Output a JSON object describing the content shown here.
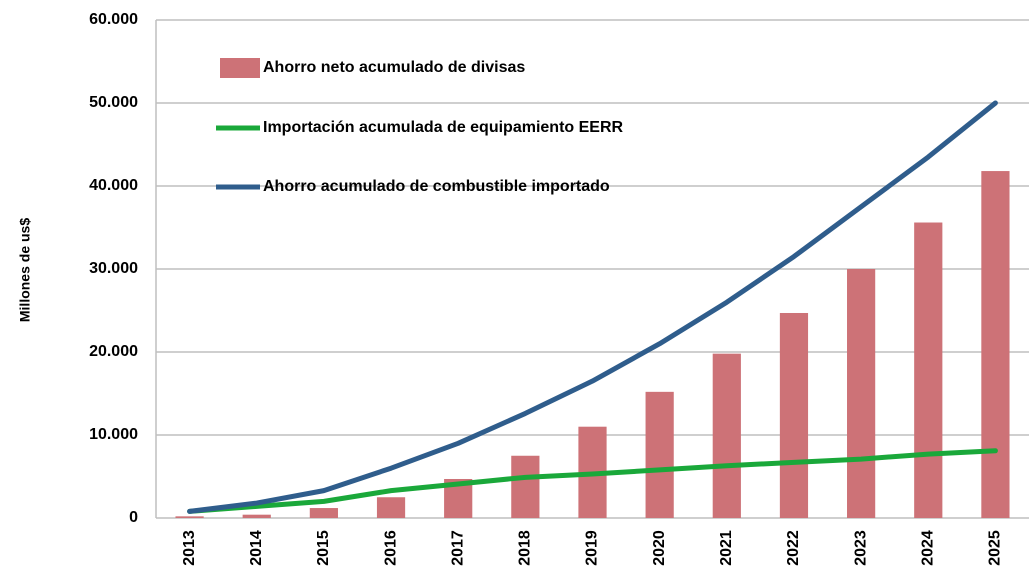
{
  "chart_data": {
    "type": "bar",
    "y_label": "Millones de us$",
    "categories": [
      "2013",
      "2014",
      "2015",
      "2016",
      "2017",
      "2018",
      "2019",
      "2020",
      "2021",
      "2022",
      "2023",
      "2024",
      "2025"
    ],
    "series": [
      {
        "name": "Ahorro neto acumulado de divisas",
        "type": "bar",
        "color": "#cd7277",
        "values": [
          200,
          400,
          1200,
          2500,
          4700,
          7500,
          11000,
          15200,
          19800,
          24700,
          30000,
          35600,
          41800
        ]
      },
      {
        "name": "Importación acumulada de equipamiento EERR",
        "type": "line",
        "color": "#1aa83a",
        "values": [
          800,
          1400,
          2000,
          3300,
          4100,
          4900,
          5300,
          5800,
          6300,
          6700,
          7100,
          7700,
          8100
        ]
      },
      {
        "name": "Ahorro acumulado de combustible importado",
        "type": "line",
        "color": "#2f5d8c",
        "values": [
          800,
          1800,
          3300,
          6000,
          9000,
          12600,
          16500,
          21000,
          26000,
          31500,
          37500,
          43500,
          50000
        ]
      }
    ],
    "ylim": [
      0,
      60000
    ],
    "yticks": [
      0,
      {
        "value": 10000,
        "label": "10.000"
      },
      {
        "value": 20000,
        "label": "20.000"
      },
      {
        "value": 30000,
        "label": "30.000"
      },
      {
        "value": 40000,
        "label": "40.000"
      },
      {
        "value": 50000,
        "label": "50.000"
      },
      {
        "value": 60000,
        "label": "60.000"
      }
    ],
    "grid": true
  }
}
